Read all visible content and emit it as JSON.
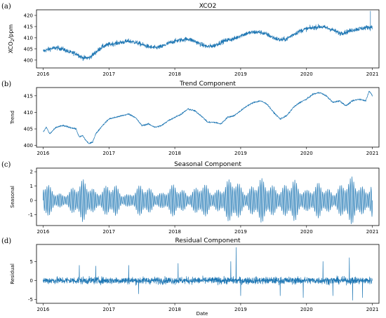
{
  "figure": {
    "xlabel": "Date"
  },
  "chart_data": [
    {
      "letter": "(a)",
      "type": "line",
      "title": "XCO2",
      "ylabel": "XCO2/ppm",
      "ylabel_parts": {
        "base": "XCO",
        "sub": "2",
        "suffix": "/ppm"
      },
      "xlim": [
        2015.9,
        2021.1
      ],
      "ylim": [
        396.5,
        422.5
      ],
      "yticks": [
        400,
        405,
        410,
        415,
        420
      ],
      "xticks": [
        "2016",
        "2017",
        "2018",
        "2019",
        "2020",
        "2021"
      ],
      "color": "#1f77b4",
      "x": [
        2016.0,
        2016.1,
        2016.2,
        2016.3,
        2016.4,
        2016.5,
        2016.6,
        2016.7,
        2016.8,
        2016.9,
        2017.0,
        2017.1,
        2017.2,
        2017.3,
        2017.4,
        2017.5,
        2017.6,
        2017.7,
        2017.8,
        2017.9,
        2018.0,
        2018.1,
        2018.2,
        2018.3,
        2018.4,
        2018.5,
        2018.6,
        2018.7,
        2018.8,
        2018.9,
        2019.0,
        2019.1,
        2019.2,
        2019.3,
        2019.4,
        2019.5,
        2019.6,
        2019.7,
        2019.8,
        2019.9,
        2020.0,
        2020.1,
        2020.2,
        2020.3,
        2020.4,
        2020.5,
        2020.6,
        2020.7,
        2020.8,
        2020.9,
        2021.0
      ],
      "y": [
        404,
        405,
        405.5,
        405,
        403.5,
        403,
        401,
        401,
        403.5,
        406,
        407,
        407.5,
        408,
        408.5,
        408,
        407,
        406,
        405.5,
        406,
        407.5,
        408.5,
        409,
        409.5,
        408.5,
        407,
        406,
        406.5,
        408,
        409,
        409.5,
        411,
        412,
        412.5,
        412.5,
        411.5,
        410,
        409,
        409.5,
        411.5,
        413,
        414,
        414.5,
        415,
        414.5,
        413.5,
        412,
        412.5,
        413.5,
        414,
        414.5,
        415
      ],
      "noise": 1.3
    },
    {
      "letter": "(b)",
      "type": "line",
      "title": "Trend Component",
      "ylabel": "Trend",
      "xlim": [
        2015.9,
        2021.1
      ],
      "ylim": [
        399.5,
        417.5
      ],
      "yticks": [
        400,
        405,
        410,
        415
      ],
      "xticks": [
        "2016",
        "2017",
        "2018",
        "2019",
        "2020",
        "2021"
      ],
      "color": "#1f77b4",
      "x": [
        2016.0,
        2016.05,
        2016.1,
        2016.2,
        2016.3,
        2016.4,
        2016.5,
        2016.55,
        2016.6,
        2016.65,
        2016.7,
        2016.75,
        2016.8,
        2016.9,
        2017.0,
        2017.1,
        2017.2,
        2017.3,
        2017.4,
        2017.5,
        2017.6,
        2017.7,
        2017.8,
        2017.9,
        2018.0,
        2018.1,
        2018.2,
        2018.3,
        2018.4,
        2018.5,
        2018.6,
        2018.7,
        2018.8,
        2018.9,
        2019.0,
        2019.1,
        2019.2,
        2019.3,
        2019.4,
        2019.5,
        2019.6,
        2019.7,
        2019.8,
        2019.9,
        2020.0,
        2020.1,
        2020.2,
        2020.3,
        2020.4,
        2020.5,
        2020.6,
        2020.7,
        2020.8,
        2020.9,
        2020.95,
        2021.0
      ],
      "y": [
        404,
        405.5,
        403.5,
        405.5,
        406,
        405.5,
        405,
        402.5,
        403,
        401.5,
        400.5,
        401,
        403.5,
        406,
        408,
        408.5,
        409,
        409.5,
        408.5,
        406,
        406.5,
        405.5,
        406,
        407.5,
        408.5,
        409.5,
        411,
        410.5,
        409,
        407,
        407,
        406.5,
        408.5,
        409,
        410.5,
        412,
        413,
        413.5,
        412.5,
        410,
        408,
        409,
        411.5,
        413,
        414,
        415.5,
        416,
        415,
        413,
        413.5,
        412,
        413.5,
        414,
        413.5,
        416.5,
        415
      ],
      "noise": 0.3
    },
    {
      "letter": "(c)",
      "type": "line",
      "title": "Seasonal Component",
      "ylabel": "Seasonal",
      "xlim": [
        2015.9,
        2021.1
      ],
      "ylim": [
        -1.75,
        2.25
      ],
      "yticks": [
        -1,
        0,
        1,
        2
      ],
      "xticks": [
        "2016",
        "2017",
        "2018",
        "2019",
        "2020",
        "2021"
      ],
      "color": "#1f77b4",
      "x": [
        2016.0,
        2016.1,
        2016.2,
        2016.3,
        2016.4,
        2016.5,
        2016.6,
        2016.7,
        2016.8,
        2016.9,
        2017.0,
        2017.1,
        2017.2,
        2017.3,
        2017.4,
        2017.5,
        2017.6,
        2017.7,
        2017.8,
        2017.9,
        2018.0,
        2018.1,
        2018.2,
        2018.3,
        2018.4,
        2018.5,
        2018.6,
        2018.7,
        2018.8,
        2018.9,
        2019.0,
        2019.1,
        2019.2,
        2019.3,
        2019.4,
        2019.5,
        2019.6,
        2019.7,
        2019.8,
        2019.9,
        2020.0,
        2020.1,
        2020.2,
        2020.3,
        2020.4,
        2020.5,
        2020.6,
        2020.7,
        2020.8,
        2020.9,
        2021.0
      ],
      "amplitude": [
        1.5,
        1.0,
        0.6,
        0.4,
        0.7,
        1.1,
        1.5,
        1.2,
        0.6,
        0.8,
        1.2,
        1.1,
        0.5,
        0.4,
        0.8,
        1.2,
        0.9,
        0.6,
        0.5,
        0.9,
        1.2,
        0.8,
        0.5,
        0.8,
        1.3,
        1.0,
        0.6,
        0.9,
        1.4,
        1.7,
        1.0,
        0.6,
        1.2,
        1.6,
        1.3,
        1.0,
        0.8,
        1.2,
        1.6,
        0.9,
        0.7,
        1.0,
        1.3,
        0.9,
        0.6,
        1.0,
        1.4,
        1.7,
        1.1,
        0.8,
        1.3
      ],
      "oscillations": 190
    },
    {
      "letter": "(d)",
      "type": "line",
      "title": "Residual Component",
      "ylabel": "Residual",
      "xlim": [
        2015.9,
        2021.1
      ],
      "ylim": [
        -6,
        9.5
      ],
      "yticks": [
        -5,
        0,
        5
      ],
      "xticks": [
        "2016",
        "2017",
        "2018",
        "2019",
        "2020",
        "2021"
      ],
      "color": "#1f77b4",
      "x": [
        2016.0,
        2021.0
      ],
      "y": [
        0,
        0
      ],
      "noise": 1.2,
      "spikes": [
        {
          "x": 2016.55,
          "y": 4.0
        },
        {
          "x": 2016.8,
          "y": 3.8
        },
        {
          "x": 2017.3,
          "y": 4.0
        },
        {
          "x": 2017.45,
          "y": -3.5
        },
        {
          "x": 2018.05,
          "y": 4.5
        },
        {
          "x": 2018.85,
          "y": 5.0
        },
        {
          "x": 2018.93,
          "y": 8.7
        },
        {
          "x": 2019.0,
          "y": -4.0
        },
        {
          "x": 2019.6,
          "y": -4.0
        },
        {
          "x": 2019.95,
          "y": -4.5
        },
        {
          "x": 2020.25,
          "y": 5.0
        },
        {
          "x": 2020.4,
          "y": -4.0
        },
        {
          "x": 2020.65,
          "y": 6.0
        },
        {
          "x": 2020.7,
          "y": -5.2
        },
        {
          "x": 2020.85,
          "y": -4.5
        }
      ]
    }
  ]
}
